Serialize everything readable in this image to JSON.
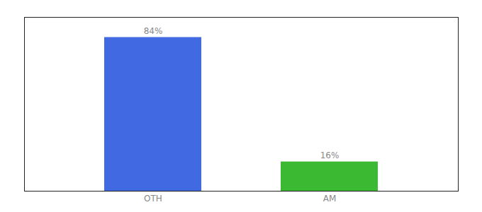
{
  "chart_data": {
    "type": "bar",
    "categories": [
      "OTH",
      "AM"
    ],
    "values": [
      84,
      16
    ],
    "value_labels": [
      "84%",
      "16%"
    ],
    "colors": [
      "#4169E1",
      "#3CB932"
    ],
    "ylim": [
      0,
      95
    ],
    "grid": false,
    "data_labels": true,
    "tick_labels": "x"
  }
}
